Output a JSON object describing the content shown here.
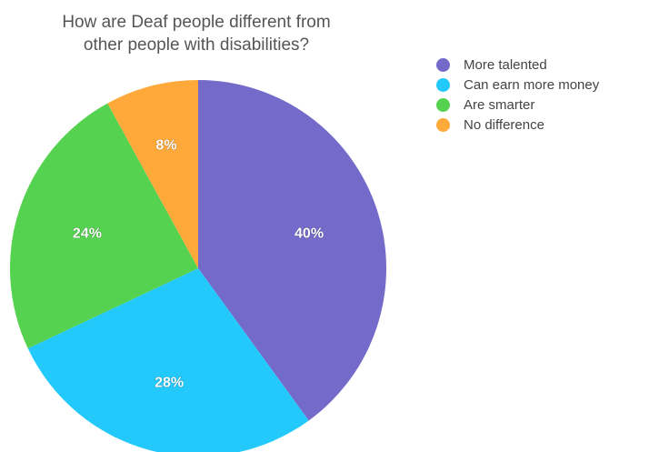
{
  "chart_data": {
    "type": "pie",
    "title_lines": [
      "How are Deaf people different from",
      "other people with disabilities?"
    ],
    "legend_position": "right",
    "slices": [
      {
        "label": "More talented",
        "value": 40,
        "display": "40%",
        "color": "#746ac9"
      },
      {
        "label": "Can earn more money",
        "value": 28,
        "display": "28%",
        "color": "#24c9fb"
      },
      {
        "label": "Are smarter",
        "value": 24,
        "display": "24%",
        "color": "#55d24f"
      },
      {
        "label": "No difference",
        "value": 8,
        "display": "8%",
        "color": "#ffa93a"
      }
    ]
  }
}
